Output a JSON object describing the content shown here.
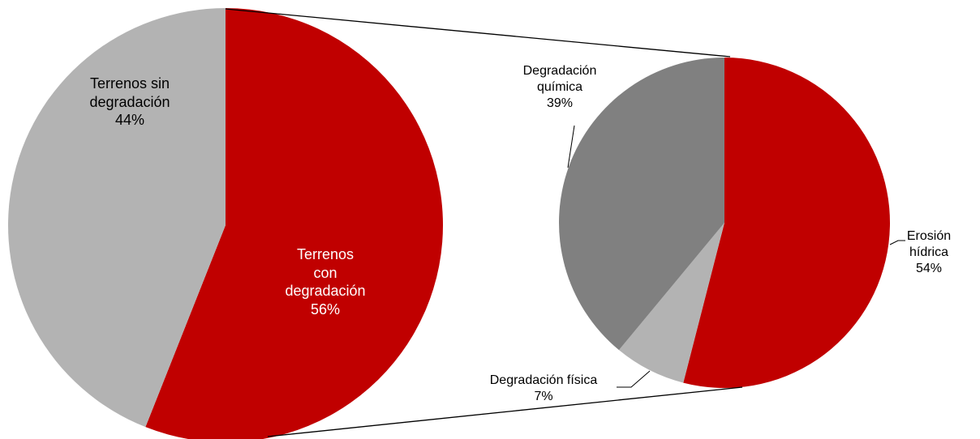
{
  "chart_data": [
    {
      "type": "pie",
      "categories": [
        "Terrenos con degradación",
        "Terrenos sin degradación"
      ],
      "values": [
        56,
        44
      ],
      "value_labels": [
        "56%",
        "44%"
      ],
      "colors": [
        "#c00000",
        "#b3b3b3"
      ]
    },
    {
      "type": "pie",
      "categories": [
        "Erosión hídrica",
        "Degradación física",
        "Degradación química"
      ],
      "values": [
        54,
        7,
        39
      ],
      "value_labels": [
        "54%",
        "7%",
        "39%"
      ],
      "colors": [
        "#c00000",
        "#b3b3b3",
        "#808080"
      ]
    }
  ]
}
